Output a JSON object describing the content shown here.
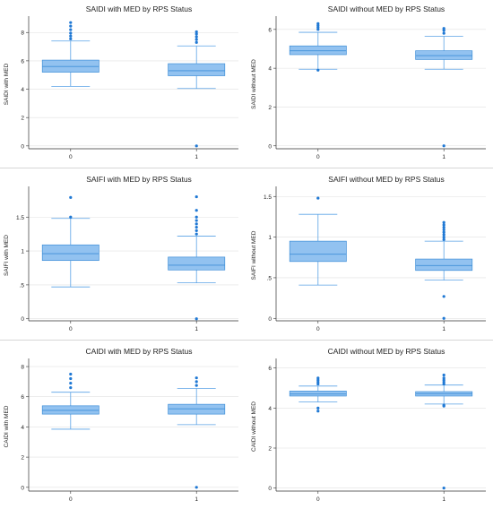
{
  "colors": {
    "box_fill": "#92c2f0",
    "box_edge": "#3f8fd8",
    "whisker": "#5aa2e6",
    "outlier": "#1f78d4",
    "axis": "#333333",
    "grid": "#e0e0e0"
  },
  "chart_data": [
    {
      "type": "boxplot",
      "title": "SAIDI with MED by RPS Status",
      "xlabel": "",
      "ylabel": "SAIDI with MED",
      "categories": [
        "0",
        "1"
      ],
      "ylim": [
        -0.2,
        8.9
      ],
      "yticks": [
        0,
        2,
        4,
        6,
        8
      ],
      "ytick_labels": [
        "0",
        "2",
        "4",
        "6",
        "8"
      ],
      "boxes": [
        {
          "category": "0",
          "whislo": 4.2,
          "q1": 5.2,
          "median": 5.6,
          "q3": 6.05,
          "whishi": 7.4,
          "outliers": [
            7.55,
            7.75,
            7.95,
            8.2,
            8.45,
            8.7
          ]
        },
        {
          "category": "1",
          "whislo": 4.05,
          "q1": 4.95,
          "median": 5.3,
          "q3": 5.8,
          "whishi": 7.05,
          "outliers": [
            0,
            7.3,
            7.5,
            7.7,
            7.9,
            8.05
          ]
        }
      ]
    },
    {
      "type": "boxplot",
      "title": "SAIDI without MED by RPS Status",
      "xlabel": "",
      "ylabel": "SAIDI without MED",
      "categories": [
        "0",
        "1"
      ],
      "ylim": [
        -0.15,
        6.5
      ],
      "yticks": [
        0,
        2,
        4,
        6
      ],
      "ytick_labels": [
        "0",
        "2",
        "4",
        "6"
      ],
      "boxes": [
        {
          "category": "0",
          "whislo": 3.95,
          "q1": 4.7,
          "median": 4.9,
          "q3": 5.15,
          "whishi": 5.85,
          "outliers": [
            3.9,
            6.0,
            6.1,
            6.2,
            6.3
          ]
        },
        {
          "category": "1",
          "whislo": 3.95,
          "q1": 4.45,
          "median": 4.65,
          "q3": 4.9,
          "whishi": 5.65,
          "outliers": [
            0,
            5.8,
            5.95,
            6.05
          ]
        }
      ]
    },
    {
      "type": "boxplot",
      "title": "SAIFI with MED by RPS Status",
      "xlabel": "",
      "ylabel": "SAIFI with MED",
      "categories": [
        "0",
        "1"
      ],
      "ylim": [
        -0.03,
        1.9
      ],
      "yticks": [
        0,
        0.5,
        1,
        1.5
      ],
      "ytick_labels": [
        "0",
        ".5",
        "1",
        "1.5"
      ],
      "boxes": [
        {
          "category": "0",
          "whislo": 0.47,
          "q1": 0.86,
          "median": 0.96,
          "q3": 1.09,
          "whishi": 1.48,
          "outliers": [
            1.5,
            1.79
          ]
        },
        {
          "category": "1",
          "whislo": 0.53,
          "q1": 0.72,
          "median": 0.79,
          "q3": 0.91,
          "whishi": 1.22,
          "outliers": [
            0,
            1.25,
            1.3,
            1.35,
            1.4,
            1.45,
            1.5,
            1.6,
            1.8
          ]
        }
      ]
    },
    {
      "type": "boxplot",
      "title": "SAIFI without MED by RPS Status",
      "xlabel": "",
      "ylabel": "SAIFI without MED",
      "categories": [
        "0",
        "1"
      ],
      "ylim": [
        -0.03,
        1.58
      ],
      "yticks": [
        0,
        0.5,
        1,
        1.5
      ],
      "ytick_labels": [
        "0",
        ".5",
        "1",
        "1.5"
      ],
      "boxes": [
        {
          "category": "0",
          "whislo": 0.41,
          "q1": 0.7,
          "median": 0.79,
          "q3": 0.95,
          "whishi": 1.28,
          "outliers": [
            1.48
          ]
        },
        {
          "category": "1",
          "whislo": 0.47,
          "q1": 0.59,
          "median": 0.65,
          "q3": 0.73,
          "whishi": 0.95,
          "outliers": [
            0,
            0.27,
            0.97,
            1.0,
            1.03,
            1.06,
            1.09,
            1.12,
            1.15,
            1.18
          ]
        }
      ]
    },
    {
      "type": "boxplot",
      "title": "CAIDI with MED by RPS Status",
      "xlabel": "",
      "ylabel": "CAIDI with MED",
      "categories": [
        "0",
        "1"
      ],
      "ylim": [
        -0.25,
        8.3
      ],
      "yticks": [
        0,
        2,
        4,
        6,
        8
      ],
      "ytick_labels": [
        "0",
        "2",
        "4",
        "6",
        "8"
      ],
      "boxes": [
        {
          "category": "0",
          "whislo": 3.85,
          "q1": 4.85,
          "median": 5.1,
          "q3": 5.4,
          "whishi": 6.3,
          "outliers": [
            6.6,
            6.9,
            7.2,
            7.5
          ]
        },
        {
          "category": "1",
          "whislo": 4.15,
          "q1": 4.85,
          "median": 5.2,
          "q3": 5.5,
          "whishi": 6.55,
          "outliers": [
            0,
            6.75,
            7.0,
            7.25
          ]
        }
      ]
    },
    {
      "type": "boxplot",
      "title": "CAIDI without MED by RPS Status",
      "xlabel": "",
      "ylabel": "CAIDI without MED",
      "categories": [
        "0",
        "1"
      ],
      "ylim": [
        -0.15,
        6.3
      ],
      "yticks": [
        0,
        2,
        4,
        6
      ],
      "ytick_labels": [
        "0",
        "2",
        "4",
        "6"
      ],
      "boxes": [
        {
          "category": "0",
          "whislo": 4.3,
          "q1": 4.6,
          "median": 4.7,
          "q3": 4.85,
          "whishi": 5.1,
          "outliers": [
            3.85,
            4.0,
            5.2,
            5.3,
            5.4,
            5.5
          ]
        },
        {
          "category": "1",
          "whislo": 4.2,
          "q1": 4.6,
          "median": 4.72,
          "q3": 4.82,
          "whishi": 5.15,
          "outliers": [
            0,
            4.1,
            4.15,
            5.2,
            5.3,
            5.4,
            5.5,
            5.65
          ]
        }
      ]
    }
  ]
}
